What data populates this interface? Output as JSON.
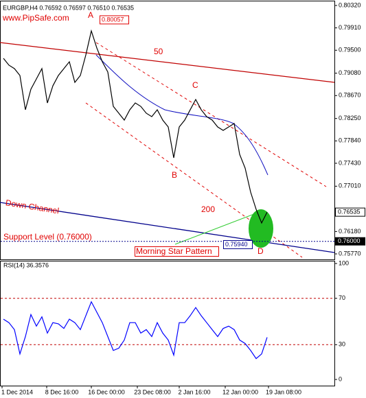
{
  "header": {
    "symbol_info": "EURGBP,H4  0.76592 0.76597 0.76510 0.76535",
    "watermark": "www.PipSafe.com"
  },
  "x_axis": {
    "labels": [
      "1 Dec 2014",
      "8 Dec 16:00",
      "16 Dec 00:00",
      "23 Dec 08:00",
      "2 Jan 16:00",
      "12 Jan 00:00",
      "19 Jan 08:00"
    ]
  },
  "chart_data": [
    {
      "type": "line",
      "color": "#000000",
      "ylim": [
        0.7577,
        0.8032
      ],
      "yticks": [
        {
          "value": 0.8032,
          "label": "0.80320"
        },
        {
          "value": 0.7991,
          "label": "0.79910"
        },
        {
          "value": 0.795,
          "label": "0.79500"
        },
        {
          "value": 0.7908,
          "label": "0.79080"
        },
        {
          "value": 0.7867,
          "label": "0.78670"
        },
        {
          "value": 0.7825,
          "label": "0.78250"
        },
        {
          "value": 0.7784,
          "label": "0.77840"
        },
        {
          "value": 0.7743,
          "label": "0.77430"
        },
        {
          "value": 0.7701,
          "label": "0.77010"
        },
        {
          "value": 0.7618,
          "label": "0.76180"
        },
        {
          "value": 0.7577,
          "label": "0.75770"
        }
      ],
      "values": [
        0.79352,
        0.79227,
        0.79164,
        0.79038,
        0.7841,
        0.78787,
        0.78975,
        0.79164,
        0.78535,
        0.78849,
        0.79038,
        0.79164,
        0.79289,
        0.78912,
        0.79038,
        0.79415,
        0.79855,
        0.79541,
        0.79289,
        0.79101,
        0.78472,
        0.78347,
        0.78221,
        0.7841,
        0.78535,
        0.78472,
        0.78347,
        0.78284,
        0.7841,
        0.78221,
        0.78095,
        0.7753,
        0.78095,
        0.78221,
        0.7841,
        0.78598,
        0.7841,
        0.78284,
        0.78221,
        0.78095,
        0.78032,
        0.78095,
        0.78158,
        0.77593,
        0.77341,
        0.76901,
        0.76587,
        0.76336,
        0.76535
      ],
      "current_price": {
        "value": 0.76535,
        "label": "0.76535"
      },
      "support": {
        "value": 0.76,
        "label": "0.76000"
      },
      "high_mark": {
        "value": 0.80057,
        "label": "0.80057"
      },
      "low_mark": {
        "value": 0.7594,
        "label": "0.75940"
      },
      "annotations": {
        "a": "A",
        "b": "B",
        "c": "C",
        "d": "D",
        "ma50": "50",
        "ma200": "200",
        "channel": "Down Channel",
        "support_text": "Support Level (0.76000)",
        "pattern": "Morning Star Pattern"
      }
    },
    {
      "type": "line",
      "title": "RSI(14) 36.3576",
      "color": "#0000ff",
      "ylim": [
        0,
        100
      ],
      "yticks": [
        0,
        30,
        70,
        100
      ],
      "levels": [
        30,
        70
      ],
      "values": [
        52,
        49,
        43,
        22,
        37,
        56,
        46,
        54,
        40,
        49,
        48,
        44,
        52,
        49,
        43,
        55,
        67,
        58,
        49,
        37,
        25,
        27,
        34,
        49,
        49,
        40,
        43,
        37,
        49,
        40,
        34,
        21,
        49,
        49,
        55,
        62,
        55,
        49,
        43,
        37,
        44,
        46,
        43,
        34,
        31,
        25,
        18,
        22,
        36.3576
      ]
    }
  ]
}
